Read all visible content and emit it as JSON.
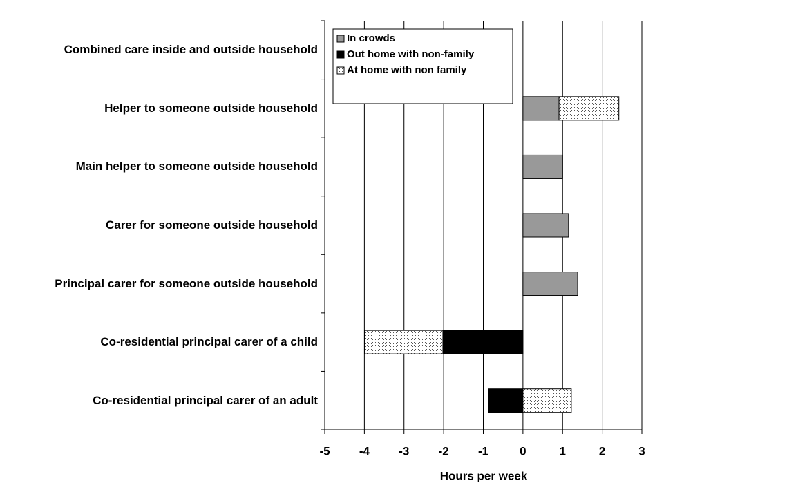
{
  "chart_data": {
    "type": "stacked_bar_horizontal",
    "x_label": "Hours per week",
    "categories": [
      "Combined care  inside and outside household",
      "Helper  to someone outside household",
      "Main helper  to someone outside household",
      "Carer for someone outside household",
      "Principal carer for someone outside household",
      "Co-residential principal carer of a child",
      "Co-residential principal carer of an adult"
    ],
    "series": [
      {
        "name": "In crowds",
        "color": "#999999",
        "values": [
          0,
          0.91,
          1.0,
          1.15,
          1.38,
          0,
          0
        ]
      },
      {
        "name": "Out home with non-family",
        "color": "#000000",
        "values": [
          0,
          0,
          0,
          0,
          0,
          -2.02,
          -0.87
        ]
      },
      {
        "name": "At home with non family",
        "color": "#ffffff",
        "pattern": "dots",
        "values": [
          0,
          1.51,
          0,
          0,
          0,
          -1.97,
          1.22
        ]
      }
    ],
    "xlim": [
      -5,
      3
    ],
    "xticks": [
      -5,
      -4,
      -3,
      -2,
      -1,
      0,
      1,
      2,
      3
    ],
    "grid": true,
    "legend": "upper left"
  }
}
